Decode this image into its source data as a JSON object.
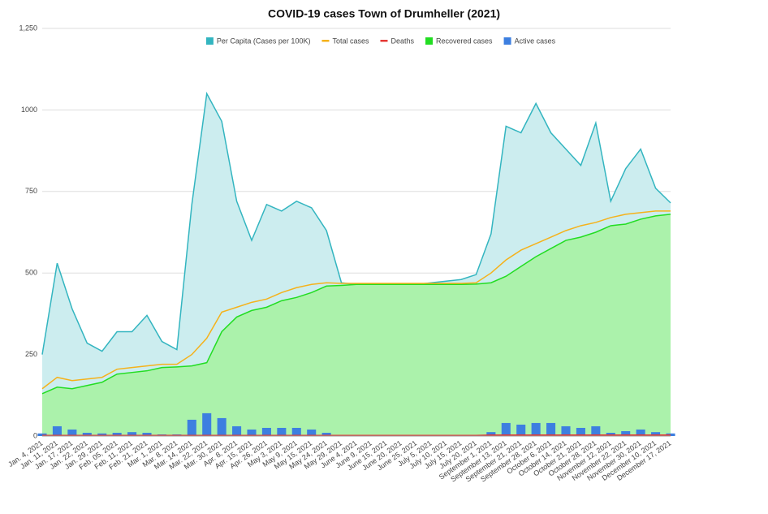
{
  "chart_data": {
    "type": "mixed",
    "title": "COVID-19 cases Town of Drumheller (2021)",
    "categories": [
      "Jan. 4, 2021",
      "Jan. 11, 2021",
      "Jan. 17, 2021",
      "Jan. 22, 2021",
      "Jan. 29, 2021",
      "Feb. 05, 2021",
      "Feb. 11, 2021",
      "Feb. 21, 2021",
      "Mar. 1, 2021",
      "Mar. 8, 2021",
      "Mar. 14, 2021",
      "Mar. 22, 2021",
      "Mar. 30, 2021",
      "Apr. 8, 2021",
      "Apr. 15, 2021",
      "Apr. 26, 2021",
      "May 3, 2021",
      "May 9, 2021",
      "May 15, 2021",
      "May 24, 2021",
      "May 29, 2021",
      "June 4, 2021",
      "June 9, 2021",
      "June 15, 2021",
      "June 20, 2021",
      "June 25, 2021",
      "July 5, 2021",
      "July 10, 2021",
      "July 15, 2021",
      "July 20, 2021",
      "September 1, 2021",
      "September 13, 2021",
      "September 21, 2021",
      "September 28, 2021",
      "October 6, 2021",
      "October 14, 2021",
      "October 21, 2021",
      "October 28, 2021",
      "November 12, 2021",
      "November 22, 2021",
      "November 30, 2021",
      "December 10, 2021",
      "December 17, 2021"
    ],
    "series": [
      {
        "name": "Per Capita (Cases per 100K)",
        "kind": "area",
        "color": "#33b5c0",
        "values": [
          250,
          530,
          390,
          285,
          260,
          320,
          320,
          370,
          290,
          265,
          710,
          1050,
          965,
          720,
          600,
          710,
          690,
          720,
          700,
          630,
          470,
          465,
          465,
          465,
          465,
          465,
          470,
          475,
          480,
          495,
          620,
          950,
          930,
          1020,
          930,
          880,
          830,
          960,
          720,
          820,
          880,
          760,
          715
        ]
      },
      {
        "name": "Total cases",
        "kind": "line",
        "color": "#f5b21b",
        "values": [
          145,
          180,
          170,
          175,
          180,
          205,
          210,
          215,
          220,
          220,
          250,
          300,
          380,
          395,
          410,
          420,
          440,
          455,
          465,
          470,
          468,
          468,
          468,
          468,
          468,
          468,
          468,
          468,
          468,
          470,
          500,
          540,
          570,
          590,
          610,
          630,
          645,
          655,
          670,
          680,
          685,
          690,
          690
        ]
      },
      {
        "name": "Deaths",
        "kind": "line",
        "color": "#e53935",
        "values": [
          2,
          2,
          2,
          2,
          2,
          2,
          2,
          2,
          2,
          2,
          2,
          2,
          2,
          2,
          2,
          2,
          2,
          2,
          2,
          2,
          2,
          2,
          2,
          2,
          2,
          2,
          2,
          2,
          2,
          2,
          3,
          3,
          3,
          3,
          3,
          3,
          3,
          3,
          3,
          3,
          3,
          3,
          3
        ]
      },
      {
        "name": "Recovered cases",
        "kind": "area",
        "color": "#22dd22",
        "values": [
          130,
          150,
          145,
          155,
          165,
          190,
          195,
          200,
          210,
          212,
          215,
          225,
          320,
          365,
          385,
          395,
          415,
          425,
          440,
          460,
          462,
          465,
          465,
          465,
          465,
          465,
          465,
          465,
          465,
          466,
          470,
          490,
          520,
          550,
          575,
          600,
          610,
          625,
          645,
          650,
          665,
          675,
          680
        ]
      },
      {
        "name": "Active cases",
        "kind": "bar",
        "color": "#3d7fe0",
        "values": [
          8,
          30,
          20,
          10,
          8,
          10,
          12,
          10,
          5,
          5,
          50,
          70,
          55,
          30,
          20,
          25,
          25,
          25,
          20,
          10,
          3,
          2,
          2,
          2,
          2,
          2,
          2,
          2,
          2,
          2,
          12,
          40,
          35,
          40,
          40,
          30,
          25,
          30,
          10,
          15,
          20,
          12,
          8
        ]
      }
    ],
    "ylim": [
      0,
      1250
    ],
    "yticks": [
      0,
      250,
      500,
      750,
      1000,
      {
        "value": 1250,
        "label": "1,250"
      }
    ],
    "grid": true
  }
}
